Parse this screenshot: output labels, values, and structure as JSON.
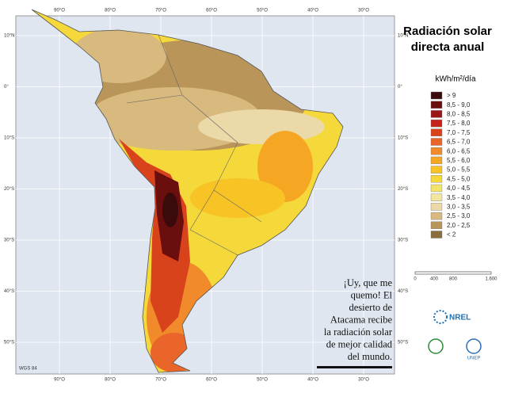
{
  "map": {
    "title_lines": [
      "Radiación solar",
      "directa anual"
    ],
    "unit": "kWh/m²/día",
    "longitudes": [
      "90°O",
      "80°O",
      "70°O",
      "60°O",
      "50°O",
      "40°O",
      "30°O"
    ],
    "latitudes": [
      "10°N",
      "0°",
      "10°S",
      "20°S",
      "30°S",
      "40°S",
      "50°S"
    ],
    "legend": [
      {
        "label": "> 9",
        "color": "#3b0a0a"
      },
      {
        "label": "8,5 - 9,0",
        "color": "#6b0e0e"
      },
      {
        "label": "8,0 - 8,5",
        "color": "#9b1515"
      },
      {
        "label": "7,5 - 8,0",
        "color": "#c4221a"
      },
      {
        "label": "7,0 - 7,5",
        "color": "#d9431c"
      },
      {
        "label": "6,5 - 7,0",
        "color": "#e9652a"
      },
      {
        "label": "6,0 - 6,5",
        "color": "#f08a2a"
      },
      {
        "label": "5,5 - 6,0",
        "color": "#f5a623"
      },
      {
        "label": "5,0 - 5,5",
        "color": "#f7c325"
      },
      {
        "label": "4,5 - 5,0",
        "color": "#f5d83a"
      },
      {
        "label": "4,0 - 4,5",
        "color": "#f4e36a"
      },
      {
        "label": "3,5 - 4,0",
        "color": "#f2e5a0"
      },
      {
        "label": "3,0 - 3,5",
        "color": "#ecd9a8"
      },
      {
        "label": "2,5 - 3,0",
        "color": "#d8b97e"
      },
      {
        "label": "2,0 - 2,5",
        "color": "#b9955a"
      },
      {
        "label": "< 2",
        "color": "#8a6f3e"
      }
    ],
    "scale": [
      "0",
      "400",
      "800",
      "1.600"
    ],
    "datum": "WGS 84",
    "logos": [
      "NREL",
      "UNEP"
    ],
    "annotation": [
      "¡Uy, que me",
      "quemo! El",
      "desierto de",
      "Atacama recibe",
      "la radiación solar",
      "de mejor calidad",
      "del mundo."
    ]
  }
}
